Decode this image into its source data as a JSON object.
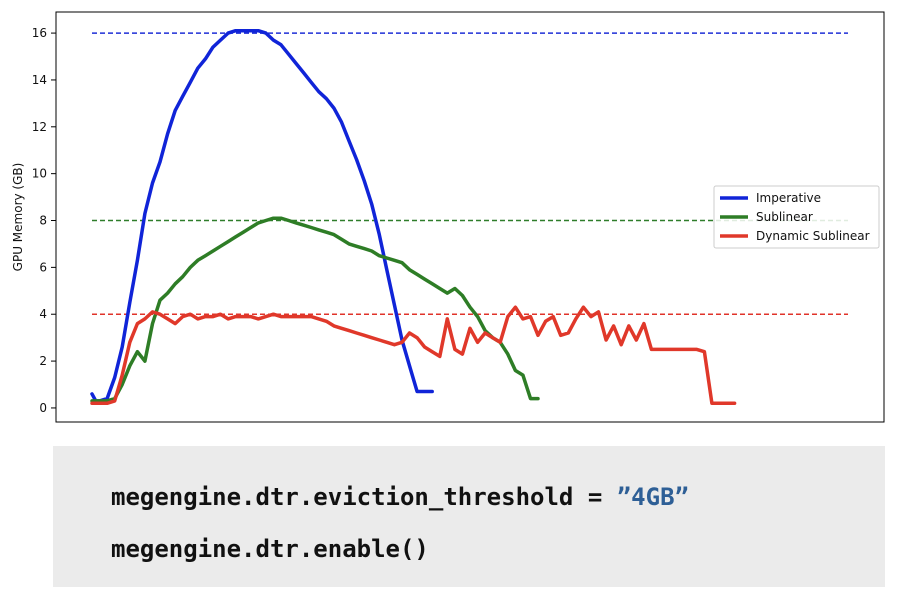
{
  "chart_data": {
    "type": "line",
    "ylabel": "GPU Memory (GB)",
    "xlabel": "",
    "title": "",
    "xlim": [
      0,
      100
    ],
    "ylim": [
      -0.6,
      16.9
    ],
    "yticks": [
      0,
      2,
      4,
      6,
      8,
      10,
      12,
      14,
      16
    ],
    "legend_position": "center-right",
    "thresholds": [
      {
        "value": 16,
        "color": "#1f2fd6"
      },
      {
        "value": 8,
        "color": "#2f7d2a"
      },
      {
        "value": 4,
        "color": "#e0332a"
      }
    ],
    "series": [
      {
        "name": "Imperative",
        "color": "#1024d8",
        "x": [
          0,
          0.5,
          1,
          2,
          3,
          4,
          5,
          6,
          7,
          8,
          9,
          10,
          11,
          12,
          13,
          14,
          15,
          16,
          17,
          18,
          19,
          20,
          21,
          22,
          23,
          24,
          25,
          26,
          27,
          28,
          29,
          30,
          31,
          32,
          33,
          34,
          35,
          36,
          37,
          38,
          39,
          40,
          41,
          42,
          43,
          44,
          45,
          46,
          47,
          48,
          49,
          50,
          51,
          52,
          53,
          54,
          55,
          56,
          57,
          58
        ],
        "y": [
          0.6,
          0.3,
          0.3,
          0.4,
          1.3,
          2.6,
          4.5,
          6.3,
          8.3,
          9.6,
          10.5,
          11.7,
          12.7,
          13.3,
          13.9,
          14.5,
          14.9,
          15.4,
          15.7,
          16.0,
          16.1,
          16.1,
          16.1,
          16.1,
          16.0,
          15.7,
          15.5,
          15.1,
          14.7,
          14.3,
          13.9,
          13.5,
          13.2,
          12.8,
          12.2,
          11.4,
          10.6,
          9.7,
          8.7,
          7.4,
          5.9,
          4.4,
          2.9,
          1.8,
          0.7,
          0.7,
          0.7,
          null,
          null,
          null,
          null,
          null,
          null,
          null,
          null,
          null,
          null,
          null,
          null,
          null
        ]
      },
      {
        "name": "Sublinear",
        "color": "#2e7d26",
        "x": [
          0,
          1,
          2,
          3,
          4,
          5,
          6,
          7,
          8,
          9,
          10,
          11,
          12,
          13,
          14,
          15,
          16,
          17,
          18,
          19,
          20,
          21,
          22,
          23,
          24,
          25,
          26,
          27,
          28,
          29,
          30,
          31,
          32,
          33,
          34,
          35,
          36,
          37,
          38,
          39,
          40,
          41,
          42,
          43,
          44,
          45,
          46,
          47,
          48,
          49,
          50,
          51,
          52,
          53,
          54,
          55,
          56,
          57,
          58,
          59,
          60,
          61,
          62,
          63,
          64,
          65,
          66,
          67,
          68,
          69,
          70,
          71,
          72,
          73
        ],
        "y": [
          0.3,
          0.3,
          0.3,
          0.4,
          1.0,
          1.8,
          2.4,
          2.0,
          3.6,
          4.6,
          4.9,
          5.3,
          5.6,
          6.0,
          6.3,
          6.5,
          6.7,
          6.9,
          7.1,
          7.3,
          7.5,
          7.7,
          7.9,
          8.0,
          8.1,
          8.1,
          8.0,
          7.9,
          7.8,
          7.7,
          7.6,
          7.5,
          7.4,
          7.2,
          7.0,
          6.9,
          6.8,
          6.7,
          6.5,
          6.4,
          6.3,
          6.2,
          5.9,
          5.7,
          5.5,
          5.3,
          5.1,
          4.9,
          5.1,
          4.8,
          4.3,
          3.9,
          3.3,
          3.0,
          2.8,
          2.3,
          1.6,
          1.4,
          0.4,
          0.4,
          null,
          null,
          null,
          null,
          null,
          null,
          null,
          null,
          null,
          null,
          null,
          null,
          null,
          null
        ]
      },
      {
        "name": "Dynamic Sublinear",
        "color": "#e0382a",
        "x": [
          0,
          1,
          2,
          3,
          4,
          5,
          6,
          7,
          8,
          9,
          10,
          11,
          12,
          13,
          14,
          15,
          16,
          17,
          18,
          19,
          20,
          21,
          22,
          23,
          24,
          25,
          26,
          27,
          28,
          29,
          30,
          31,
          32,
          33,
          34,
          35,
          36,
          37,
          38,
          39,
          40,
          41,
          42,
          43,
          44,
          45,
          46,
          47,
          48,
          49,
          50,
          51,
          52,
          53,
          54,
          55,
          56,
          57,
          58,
          59,
          60,
          61,
          62,
          63,
          64,
          65,
          66,
          67,
          68,
          69,
          70,
          71,
          72,
          73,
          74,
          75,
          76,
          77,
          78,
          79,
          80,
          81,
          82,
          83,
          84,
          85,
          86,
          87,
          88,
          89,
          90,
          91,
          92,
          93,
          94,
          95,
          96,
          97,
          98,
          99,
          100
        ],
        "y": [
          0.2,
          0.2,
          0.2,
          0.3,
          1.4,
          2.8,
          3.6,
          3.8,
          4.1,
          4.0,
          3.8,
          3.6,
          3.9,
          4.0,
          3.8,
          3.9,
          3.9,
          4.0,
          3.8,
          3.9,
          3.9,
          3.9,
          3.8,
          3.9,
          4.0,
          3.9,
          3.9,
          3.9,
          3.9,
          3.9,
          3.8,
          3.7,
          3.5,
          3.4,
          3.3,
          3.2,
          3.1,
          3.0,
          2.9,
          2.8,
          2.7,
          2.8,
          3.2,
          3.0,
          2.6,
          2.4,
          2.2,
          3.8,
          2.5,
          2.3,
          3.4,
          2.8,
          3.2,
          3.0,
          2.8,
          3.9,
          4.3,
          3.8,
          3.9,
          3.1,
          3.7,
          3.9,
          3.1,
          3.2,
          3.8,
          4.3,
          3.9,
          4.1,
          2.9,
          3.5,
          2.7,
          3.5,
          2.9,
          3.6,
          2.5,
          2.5,
          2.5,
          2.5,
          2.5,
          2.5,
          2.5,
          2.4,
          0.2,
          0.2,
          0.2,
          0.2,
          null,
          null,
          null,
          null,
          null,
          null,
          null,
          null,
          null,
          null,
          null,
          null,
          null,
          null,
          null
        ]
      }
    ]
  },
  "code": {
    "line1_prefix": "megengine.dtr.eviction_threshold = ",
    "line1_string": "”4GB”",
    "line2": "megengine.dtr.enable()"
  }
}
